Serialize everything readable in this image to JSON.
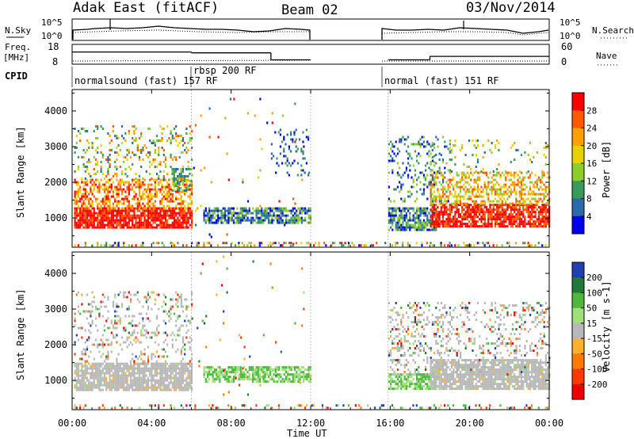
{
  "header": {
    "station": "Adak East (fitACF)",
    "beam": "Beam 02",
    "date": "03/Nov/2014"
  },
  "noise_panel": {
    "left_label": "N.Sky",
    "right_label": "N.Search",
    "left_ticks": [
      "10^5",
      "10^0"
    ],
    "right_ticks": [
      "10^5",
      "10^0"
    ]
  },
  "freq_panel": {
    "left_label_1": "Freq.",
    "left_label_2": "[MHz]",
    "left_ticks": [
      "18",
      "8"
    ],
    "right_label": "Nave",
    "right_ticks": [
      "60",
      "0"
    ]
  },
  "cpid": {
    "label": "CPID",
    "modes": [
      {
        "name": "normalsound (fast) 157 RF",
        "start_hour": 0
      },
      {
        "name": "rbsp 200 RF",
        "start_hour": 6
      },
      {
        "name": "normal (fast) 151 RF",
        "start_hour": 15.9
      }
    ]
  },
  "power_panel": {
    "ylabel": "Slant Range [km]",
    "cbar_label": "Power [dB]",
    "cbar_ticks": [
      "28",
      "24",
      "20",
      "16",
      "12",
      "8",
      "4"
    ],
    "colors": [
      "#ff0000",
      "#ff5a00",
      "#ffa000",
      "#e6d200",
      "#8fce2a",
      "#3a9a5a",
      "#2a6aa8",
      "#0000ee"
    ]
  },
  "velocity_panel": {
    "ylabel": "Slant Range [km]",
    "cbar_label": "Velocity [m s-1]",
    "cbar_ticks": [
      "200",
      "100",
      "50",
      "15",
      "-15",
      "-50",
      "-100",
      "-200"
    ],
    "colors": [
      "#2040b0",
      "#1f7a3a",
      "#4db83b",
      "#9ee07a",
      "#b8b8b8",
      "#ffb030",
      "#ff7a00",
      "#ff3a00",
      "#ee0000"
    ]
  },
  "x_axis": {
    "label": "Time UT",
    "ticks": [
      "00:00",
      "04:00",
      "08:00",
      "12:00",
      "16:00",
      "20:00",
      "00:00"
    ]
  },
  "chart_data": {
    "type": "heatmap",
    "title": "Adak East (fitACF) Beam 02 03/Nov/2014",
    "xlabel": "Time UT",
    "ylabel": "Slant Range [km]",
    "xlim_hours": [
      0,
      24
    ],
    "ylim_km": [
      180,
      4600
    ],
    "y_ticks_km": [
      1000,
      2000,
      3000,
      4000
    ],
    "data_gap_hours": [
      12,
      15.9
    ],
    "frequency_mhz": [
      {
        "start": 0,
        "end": 6,
        "value": 15
      },
      {
        "start": 6,
        "end": 10,
        "value": 14.5
      },
      {
        "start": 10,
        "end": 12,
        "value": 10.5
      },
      {
        "start": 15.9,
        "end": 18,
        "value": 10.5
      },
      {
        "start": 18,
        "end": 24,
        "value": 12.5
      }
    ],
    "power_regions": [
      {
        "t0": 0,
        "t1": 6,
        "r0": 700,
        "r1": 2600,
        "dB": 24,
        "desc_color": "red-orange"
      },
      {
        "t0": 6.5,
        "t1": 12,
        "r0": 850,
        "r1": 1300,
        "dB": 8
      },
      {
        "t0": 15.9,
        "t1": 18.5,
        "r0": 700,
        "r1": 1300,
        "dB": 8
      },
      {
        "t0": 17,
        "t1": 24,
        "r0": 800,
        "r1": 2300,
        "dB": 22
      }
    ],
    "velocity_regions": [
      {
        "t0": 0,
        "t1": 6,
        "r0": 750,
        "r1": 1900,
        "vel": 0
      },
      {
        "t0": 6.5,
        "t1": 12,
        "r0": 1000,
        "r1": 1400,
        "vel": 30
      },
      {
        "t0": 15.9,
        "t1": 18.5,
        "r0": 750,
        "r1": 1200,
        "vel": 40
      },
      {
        "t0": 17,
        "t1": 24,
        "r0": 800,
        "r1": 1700,
        "vel": 0
      }
    ]
  }
}
